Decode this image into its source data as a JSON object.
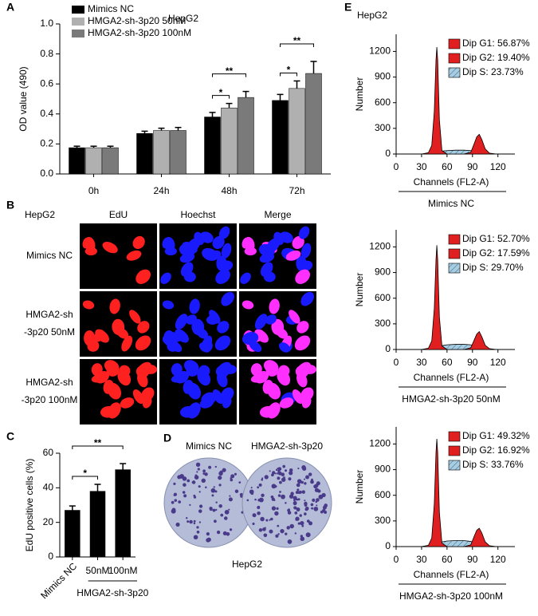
{
  "chart_data": [
    {
      "type": "bar",
      "panel": "A",
      "title": "HepG2",
      "ylabel": "OD value (490)",
      "categories": [
        "0h",
        "24h",
        "48h",
        "72h"
      ],
      "series": [
        {
          "name": "Mimics NC",
          "color": "#000000",
          "values": [
            0.175,
            0.27,
            0.38,
            0.49
          ],
          "errors": [
            0.01,
            0.015,
            0.03,
            0.04
          ]
        },
        {
          "name": "HMGA2-sh-3p20 50nM",
          "color": "#b0b0b0",
          "values": [
            0.175,
            0.29,
            0.44,
            0.57
          ],
          "errors": [
            0.01,
            0.015,
            0.03,
            0.05
          ]
        },
        {
          "name": "HMGA2-sh-3p20 100nM",
          "color": "#7a7a7a",
          "values": [
            0.175,
            0.29,
            0.51,
            0.67
          ],
          "errors": [
            0.01,
            0.02,
            0.04,
            0.08
          ]
        }
      ],
      "ylim": [
        0,
        1
      ],
      "yticks": [
        {
          "value": 0,
          "label": "0.0"
        },
        0.2,
        0.4,
        0.6,
        0.8,
        {
          "value": 1,
          "label": "1.0"
        }
      ],
      "annotations": [
        "*",
        "**",
        "*",
        "**"
      ]
    },
    {
      "type": "bar",
      "panel": "C",
      "ylabel": "EdU positive cells (%)",
      "categories": [
        "Mimics NC",
        "50nM",
        "100nM"
      ],
      "group_label": "HMGA2-sh-3p20",
      "values": [
        27,
        38,
        50.5
      ],
      "errors": [
        2.5,
        4,
        3.5
      ],
      "color": "#000000",
      "ylim": [
        0,
        60
      ],
      "yticks": [
        0,
        20,
        40,
        60
      ],
      "annotations": [
        "*",
        "**"
      ]
    },
    {
      "type": "area",
      "panel": "E",
      "title": "HepG2",
      "xlabel": "Channels (FL2-A)",
      "ylabel": "Number",
      "sample": "Mimics NC",
      "x": [
        30,
        38,
        42,
        45,
        47,
        48,
        49,
        51,
        54,
        60,
        70,
        80,
        88,
        92,
        95,
        98,
        101,
        105,
        110,
        118
      ],
      "series": [
        {
          "name": "Dip G1: 56.87%",
          "color": "#e02020",
          "values": [
            0,
            15,
            100,
            500,
            1100,
            1250,
            1100,
            400,
            40,
            0,
            null,
            null,
            null,
            null,
            null,
            null,
            null,
            null,
            null,
            null
          ]
        },
        {
          "name": "Dip G2: 19.40%",
          "color": "#e02020",
          "values": [
            null,
            null,
            null,
            null,
            null,
            null,
            null,
            null,
            null,
            null,
            null,
            0,
            20,
            120,
            200,
            230,
            170,
            60,
            10,
            0
          ]
        },
        {
          "name": "Dip S: 23.73%",
          "color": "#a8cce0",
          "pattern": "hatch",
          "values": [
            0,
            8,
            15,
            25,
            30,
            30,
            30,
            30,
            35,
            40,
            45,
            45,
            40,
            30,
            20,
            10,
            5,
            0,
            null,
            null
          ]
        }
      ],
      "xlim": [
        0,
        140
      ],
      "ylim": [
        0,
        1400
      ],
      "xticks": [
        0,
        30,
        60,
        90,
        120
      ],
      "yticks": [
        0,
        300,
        600,
        900,
        1200
      ]
    },
    {
      "type": "area",
      "xlabel": "Channels (FL2-A)",
      "ylabel": "Number",
      "sample": "HMGA2-sh-3p20 50nM",
      "x": [
        30,
        38,
        42,
        45,
        47,
        48,
        49,
        51,
        54,
        60,
        70,
        80,
        88,
        92,
        95,
        98,
        101,
        105,
        110,
        118
      ],
      "series": [
        {
          "name": "Dip G1: 52.70%",
          "color": "#e02020",
          "values": [
            0,
            15,
            100,
            480,
            1050,
            1220,
            1050,
            380,
            40,
            0,
            null,
            null,
            null,
            null,
            null,
            null,
            null,
            null,
            null,
            null
          ]
        },
        {
          "name": "Dip G2: 17.59%",
          "color": "#e02020",
          "values": [
            null,
            null,
            null,
            null,
            null,
            null,
            null,
            null,
            null,
            null,
            null,
            0,
            20,
            110,
            180,
            210,
            150,
            50,
            10,
            0
          ]
        },
        {
          "name": "Dip S: 29.70%",
          "color": "#a8cce0",
          "pattern": "hatch",
          "values": [
            0,
            10,
            20,
            35,
            40,
            40,
            40,
            40,
            45,
            55,
            60,
            60,
            55,
            40,
            25,
            12,
            5,
            0,
            null,
            null
          ]
        }
      ],
      "xlim": [
        0,
        140
      ],
      "ylim": [
        0,
        1400
      ],
      "xticks": [
        0,
        30,
        60,
        90,
        120
      ],
      "yticks": [
        0,
        300,
        600,
        900,
        1200
      ]
    },
    {
      "type": "area",
      "xlabel": "Channels (FL2-A)",
      "ylabel": "Number",
      "sample": "HMGA2-sh-3p20 100nM",
      "x": [
        30,
        38,
        42,
        45,
        47,
        48,
        49,
        51,
        54,
        60,
        70,
        80,
        88,
        92,
        95,
        98,
        101,
        105,
        110,
        118
      ],
      "series": [
        {
          "name": "Dip G1: 49.32%",
          "color": "#e02020",
          "values": [
            0,
            15,
            100,
            500,
            1100,
            1260,
            1100,
            400,
            40,
            0,
            null,
            null,
            null,
            null,
            null,
            null,
            null,
            null,
            null,
            null
          ]
        },
        {
          "name": "Dip G2: 16.92%",
          "color": "#e02020",
          "values": [
            null,
            null,
            null,
            null,
            null,
            null,
            null,
            null,
            null,
            null,
            null,
            0,
            20,
            120,
            190,
            215,
            160,
            55,
            10,
            0
          ]
        },
        {
          "name": "Dip S: 33.76%",
          "color": "#a8cce0",
          "pattern": "hatch",
          "values": [
            0,
            12,
            25,
            40,
            50,
            50,
            50,
            50,
            55,
            65,
            70,
            70,
            60,
            45,
            30,
            15,
            5,
            0,
            null,
            null
          ]
        }
      ],
      "xlim": [
        0,
        140
      ],
      "ylim": [
        0,
        1400
      ],
      "xticks": [
        0,
        30,
        60,
        90,
        120
      ],
      "yticks": [
        0,
        300,
        600,
        900,
        1200
      ]
    }
  ],
  "panel_B": {
    "letter": "B",
    "cell_line": "HepG2",
    "columns": [
      "EdU",
      "Hoechst",
      "Merge"
    ],
    "rows": [
      [
        "Mimics NC"
      ],
      [
        "HMGA2-sh",
        "-3p20 50nM"
      ],
      [
        "HMGA2-sh",
        "-3p20 100nM"
      ]
    ]
  },
  "panel_D": {
    "letter": "D",
    "labels": [
      "Mimics NC",
      "HMGA2-sh-3p20"
    ],
    "caption": "HepG2"
  }
}
